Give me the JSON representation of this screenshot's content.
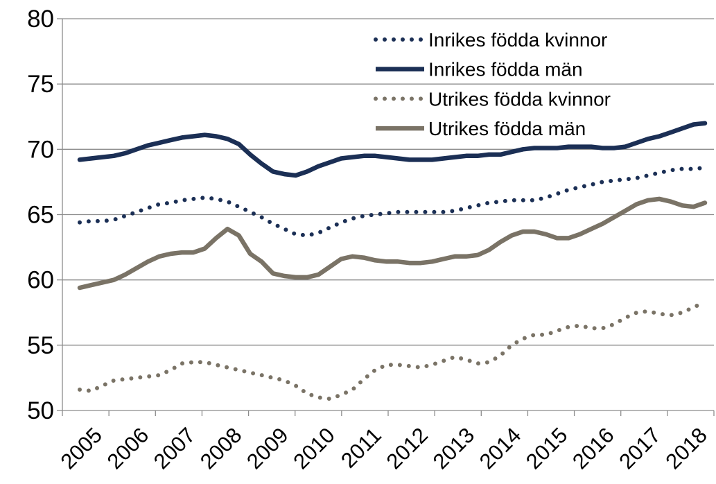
{
  "chart_data": {
    "type": "line",
    "categories": [
      null,
      "2005",
      null,
      null,
      null,
      "2006",
      null,
      null,
      null,
      "2007",
      null,
      null,
      null,
      "2008",
      null,
      null,
      null,
      "2009",
      null,
      null,
      null,
      "2010",
      null,
      null,
      null,
      "2011",
      null,
      null,
      null,
      "2012",
      null,
      null,
      null,
      "2013",
      null,
      null,
      null,
      "2014",
      null,
      null,
      null,
      "2015",
      null,
      null,
      null,
      "2016",
      null,
      null,
      null,
      "2017",
      null,
      null,
      null,
      "2018",
      null,
      null
    ],
    "series": [
      {
        "name": "Inrikes födda kvinnor",
        "color": "#1b2f55",
        "dotted": true,
        "values": [
          64.4,
          64.5,
          64.5,
          64.6,
          64.9,
          65.2,
          65.5,
          65.8,
          65.9,
          66.1,
          66.2,
          66.3,
          66.2,
          66.0,
          65.6,
          65.2,
          64.8,
          64.3,
          63.9,
          63.5,
          63.4,
          63.6,
          64.0,
          64.4,
          64.7,
          64.9,
          65.0,
          65.1,
          65.2,
          65.2,
          65.2,
          65.2,
          65.2,
          65.3,
          65.5,
          65.7,
          65.9,
          66.0,
          66.1,
          66.1,
          66.1,
          66.3,
          66.6,
          66.9,
          67.1,
          67.3,
          67.5,
          67.6,
          67.7,
          67.8,
          68.0,
          68.2,
          68.4,
          68.5,
          68.5,
          68.6
        ]
      },
      {
        "name": "Inrikes födda män",
        "color": "#1b2f55",
        "dotted": false,
        "values": [
          69.2,
          69.3,
          69.4,
          69.5,
          69.7,
          70.0,
          70.3,
          70.5,
          70.7,
          70.9,
          71.0,
          71.1,
          71.0,
          70.8,
          70.4,
          69.6,
          68.9,
          68.3,
          68.1,
          68.0,
          68.3,
          68.7,
          69.0,
          69.3,
          69.4,
          69.5,
          69.5,
          69.4,
          69.3,
          69.2,
          69.2,
          69.2,
          69.3,
          69.4,
          69.5,
          69.5,
          69.6,
          69.6,
          69.8,
          70.0,
          70.1,
          70.1,
          70.1,
          70.2,
          70.2,
          70.2,
          70.1,
          70.1,
          70.2,
          70.5,
          70.8,
          71.0,
          71.3,
          71.6,
          71.9,
          72.0
        ]
      },
      {
        "name": "Utrikes födda kvinnor",
        "color": "#7a7366",
        "dotted": true,
        "values": [
          51.6,
          51.5,
          51.9,
          52.3,
          52.4,
          52.5,
          52.6,
          52.7,
          53.1,
          53.6,
          53.7,
          53.7,
          53.5,
          53.3,
          53.1,
          52.9,
          52.7,
          52.5,
          52.3,
          51.9,
          51.3,
          51.0,
          50.9,
          51.2,
          51.6,
          52.4,
          53.1,
          53.5,
          53.5,
          53.4,
          53.3,
          53.5,
          53.8,
          54.1,
          53.9,
          53.6,
          53.7,
          54.2,
          55.0,
          55.5,
          55.8,
          55.8,
          56.1,
          56.4,
          56.5,
          56.3,
          56.3,
          56.6,
          57.1,
          57.5,
          57.6,
          57.4,
          57.3,
          57.5,
          57.9,
          58.3
        ]
      },
      {
        "name": "Utrikes födda män",
        "color": "#7a7366",
        "dotted": false,
        "values": [
          59.4,
          59.6,
          59.8,
          60.0,
          60.4,
          60.9,
          61.4,
          61.8,
          62.0,
          62.1,
          62.1,
          62.4,
          63.2,
          63.9,
          63.4,
          62.0,
          61.4,
          60.5,
          60.3,
          60.2,
          60.2,
          60.4,
          61.0,
          61.6,
          61.8,
          61.7,
          61.5,
          61.4,
          61.4,
          61.3,
          61.3,
          61.4,
          61.6,
          61.8,
          61.8,
          61.9,
          62.3,
          62.9,
          63.4,
          63.7,
          63.7,
          63.5,
          63.2,
          63.2,
          63.5,
          63.9,
          64.3,
          64.8,
          65.3,
          65.8,
          66.1,
          66.2,
          66.0,
          65.7,
          65.6,
          65.9
        ]
      }
    ],
    "ylim": [
      50,
      80
    ],
    "yticks": [
      50,
      55,
      60,
      65,
      70,
      75,
      80
    ],
    "grid": true,
    "legend": "top-right"
  }
}
